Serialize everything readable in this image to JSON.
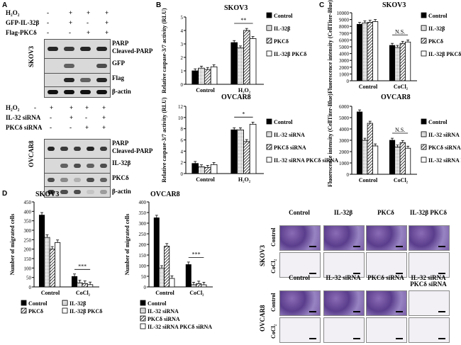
{
  "panels": {
    "a": "A",
    "b": "B",
    "c": "C",
    "d": "D"
  },
  "blotA": {
    "top_rows": [
      {
        "label": "H₂O₂",
        "marks": [
          "-",
          "+",
          "+",
          "+"
        ]
      },
      {
        "label": "GFP-IL-32β",
        "marks": [
          "-",
          "+",
          "-",
          "+"
        ]
      },
      {
        "label": "Flag-PKCδ",
        "marks": [
          "-",
          "-",
          "+",
          "+"
        ]
      }
    ],
    "top_cell": "SKOV3",
    "top_bands": [
      "PARP",
      "Cleaved-PARP",
      "GFP",
      "Flag",
      "β-actin"
    ],
    "bottom_rows": [
      {
        "label": "H₂O₂",
        "marks": [
          "-",
          "+",
          "+",
          "+",
          "+"
        ]
      },
      {
        "label": "IL-32 siRNA",
        "marks": [
          "-",
          "-",
          "+",
          "-",
          "+"
        ]
      },
      {
        "label": "PKCδ siRNA",
        "marks": [
          "-",
          "-",
          "-",
          "+",
          "+"
        ]
      }
    ],
    "bottom_cell": "OVCAR8",
    "bottom_bands": [
      "PARP",
      "Cleaved-PARP",
      "IL-32β",
      "PKCδ",
      "β-actin"
    ]
  },
  "chart_data": [
    {
      "id": "B-top",
      "type": "bar",
      "title": "SKOV3",
      "ylabel": "Relative caspase-3/7 activity (RLU)",
      "categories": [
        "Control",
        "H₂O₂"
      ],
      "ylim": [
        0,
        5
      ],
      "yticks": [
        0,
        1,
        2,
        3,
        4,
        5
      ],
      "series": [
        {
          "name": "Control",
          "values": [
            1.0,
            3.1
          ]
        },
        {
          "name": "IL-32β",
          "values": [
            1.2,
            2.7
          ]
        },
        {
          "name": "PKCδ",
          "values": [
            1.1,
            4.0
          ]
        },
        {
          "name": "IL-32β PKCδ",
          "values": [
            1.3,
            3.4
          ]
        }
      ],
      "significance": "**"
    },
    {
      "id": "B-bottom",
      "type": "bar",
      "title": "OVCAR8",
      "ylabel": "Relative caspase-3/7 activity (RLU)",
      "categories": [
        "Control",
        "H₂O₂"
      ],
      "ylim": [
        0,
        12
      ],
      "yticks": [
        0,
        2,
        4,
        6,
        8,
        10,
        12
      ],
      "series": [
        {
          "name": "Control",
          "values": [
            1.8,
            7.8
          ]
        },
        {
          "name": "IL-32 siRNA",
          "values": [
            1.2,
            7.8
          ]
        },
        {
          "name": "PKCδ siRNA",
          "values": [
            1.1,
            5.7
          ]
        },
        {
          "name": "IL-32 siRNA PKCδ siRNA",
          "values": [
            1.6,
            8.8
          ]
        }
      ],
      "significance": "*"
    },
    {
      "id": "C-top",
      "type": "bar",
      "title": "SKOV3",
      "ylabel": "Fluorescence intensity (CellTiter-Blue)",
      "categories": [
        "Control",
        "CoCl₂"
      ],
      "ylim": [
        0,
        10000
      ],
      "yticks": [
        0,
        1000,
        2000,
        3000,
        4000,
        5000,
        6000,
        7000,
        8000,
        9000,
        10000
      ],
      "series": [
        {
          "name": "Control",
          "values": [
            8300,
            5200
          ]
        },
        {
          "name": "IL-32β",
          "values": [
            8500,
            4900
          ]
        },
        {
          "name": "PKCδ",
          "values": [
            8600,
            5500
          ]
        },
        {
          "name": "IL-32β PKCδ",
          "values": [
            8700,
            5700
          ]
        }
      ],
      "significance": "N.S."
    },
    {
      "id": "C-bottom",
      "type": "bar",
      "title": "OVCAR8",
      "ylabel": "Fluorescence intensity (CellTiter-Blue)",
      "categories": [
        "Control",
        "CoCl₂"
      ],
      "ylim": [
        0,
        6000
      ],
      "yticks": [
        0,
        1000,
        2000,
        3000,
        4000,
        5000,
        6000
      ],
      "series": [
        {
          "name": "Control",
          "values": [
            5500,
            3000
          ]
        },
        {
          "name": "IL-32 siRNA",
          "values": [
            3000,
            2400
          ]
        },
        {
          "name": "PKCδ siRNA",
          "values": [
            4500,
            2800
          ]
        },
        {
          "name": "IL-32 siRNA PKCδ siRNA",
          "values": [
            2500,
            2300
          ]
        }
      ],
      "significance": "N.S."
    },
    {
      "id": "D-left",
      "type": "bar",
      "title": "SKOV3",
      "ylabel": "Number of migrated cells",
      "categories": [
        "Control",
        "CoCl₂"
      ],
      "ylim": [
        0,
        450
      ],
      "yticks": [
        0,
        50,
        100,
        150,
        200,
        250,
        300,
        350,
        400,
        450
      ],
      "series": [
        {
          "name": "Control",
          "values": [
            380,
            55
          ]
        },
        {
          "name": "IL-32β",
          "values": [
            262,
            22
          ]
        },
        {
          "name": "PKCδ",
          "values": [
            200,
            18
          ]
        },
        {
          "name": "IL-32β PKCδ",
          "values": [
            235,
            12
          ]
        }
      ],
      "significance": "***"
    },
    {
      "id": "D-mid",
      "type": "bar",
      "title": "OVCAR8",
      "ylabel": "Number of migrated cells",
      "categories": [
        "Control",
        "CoCl₂"
      ],
      "ylim": [
        0,
        400
      ],
      "yticks": [
        0,
        50,
        100,
        150,
        200,
        250,
        300,
        350,
        400
      ],
      "series": [
        {
          "name": "Control",
          "values": [
            325,
            105
          ]
        },
        {
          "name": "IL-32 siRNA",
          "values": [
            88,
            10
          ]
        },
        {
          "name": "PKCδ siRNA",
          "values": [
            192,
            15
          ]
        },
        {
          "name": "IL-32 siRNA PKCδ siRNA",
          "values": [
            40,
            10
          ]
        }
      ],
      "significance": "***"
    }
  ],
  "micrographs": {
    "top_cols": [
      "Control",
      "IL-32β",
      "PKCδ",
      "IL-32β PKCδ"
    ],
    "top_cell": "SKOV3",
    "top_rows": [
      "Control",
      "CoCl₂"
    ],
    "bottom_cols": [
      "Control",
      "IL-32 siRNA",
      "PKCδ siRNA",
      "IL-32 siRNA PKCδ siRNA"
    ],
    "bottom_cell": "OVCAR8",
    "bottom_rows": [
      "Control",
      "CoCl₂"
    ]
  }
}
